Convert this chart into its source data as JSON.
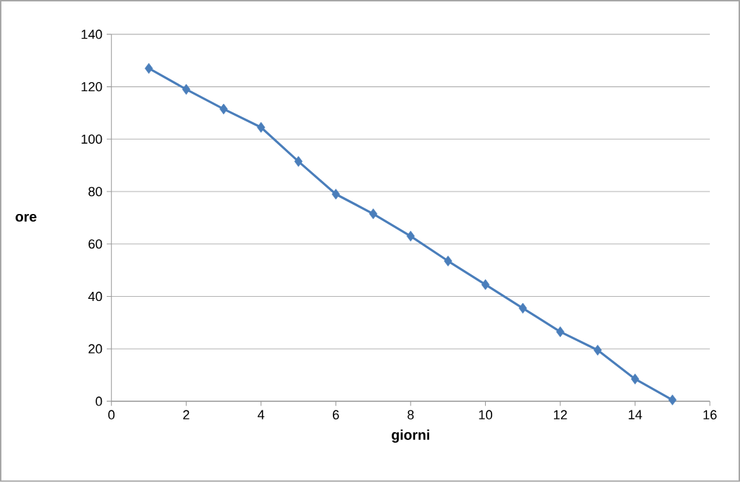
{
  "chart_data": {
    "type": "line",
    "xlabel": "giorni",
    "ylabel": "ore",
    "x": [
      1,
      2,
      3,
      4,
      5,
      6,
      7,
      8,
      9,
      10,
      11,
      12,
      13,
      14,
      15
    ],
    "series": [
      {
        "color": "#4a7ebb",
        "values": [
          127,
          119,
          111.5,
          104.5,
          91.5,
          79,
          71.5,
          63,
          53.5,
          44.5,
          35.5,
          26.5,
          19.5,
          8.5,
          0.5
        ]
      }
    ],
    "xlim": [
      0,
      16
    ],
    "xticks": [
      0,
      2,
      4,
      6,
      8,
      10,
      12,
      14,
      16
    ],
    "ylim": [
      0,
      140
    ],
    "yticks": [
      0,
      20,
      40,
      60,
      80,
      100,
      120,
      140
    ],
    "grid": "y",
    "marker": "diamond",
    "line_style": "solid"
  }
}
